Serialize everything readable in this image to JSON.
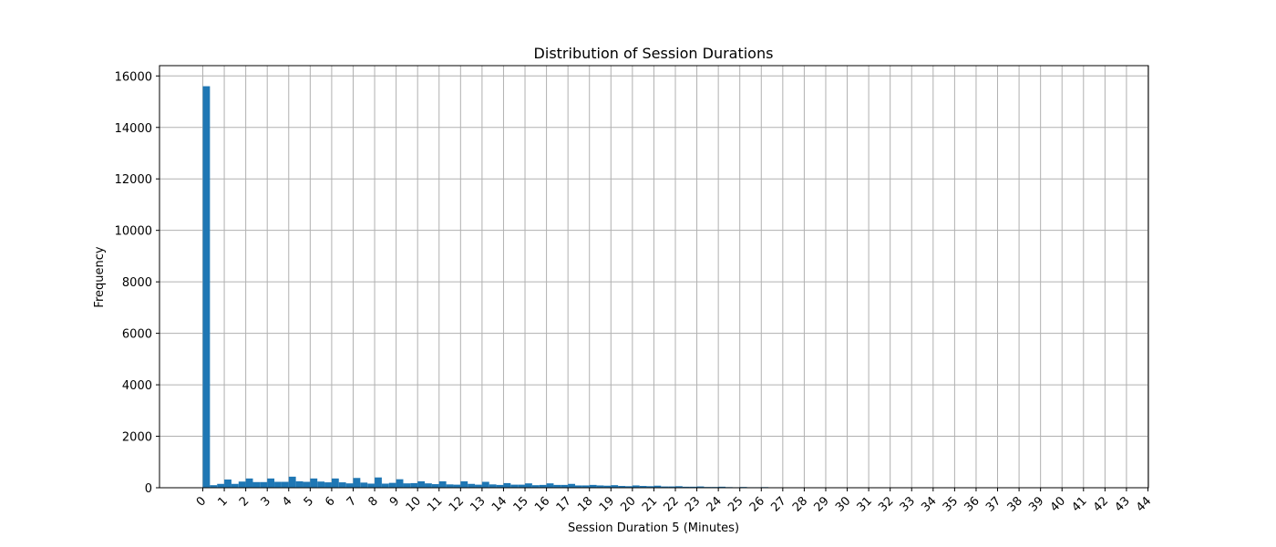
{
  "chart_data": {
    "type": "bar",
    "title": "Distribution of Session Durations",
    "xlabel": "Session Duration 5 (Minutes)",
    "ylabel": "Frequency",
    "bar_color": "#1f77b4",
    "grid": true,
    "xlim": [
      -2,
      44
    ],
    "ylim": [
      0,
      16400
    ],
    "xticks": [
      0,
      1,
      2,
      3,
      4,
      5,
      6,
      7,
      8,
      9,
      10,
      11,
      12,
      13,
      14,
      15,
      16,
      17,
      18,
      19,
      20,
      21,
      22,
      23,
      24,
      25,
      26,
      27,
      28,
      29,
      30,
      31,
      32,
      33,
      34,
      35,
      36,
      37,
      38,
      39,
      40,
      41,
      42,
      43,
      44
    ],
    "yticks": [
      0,
      2000,
      4000,
      6000,
      8000,
      10000,
      12000,
      14000,
      16000
    ],
    "bin_width": 0.333,
    "x": [
      0.0,
      0.333,
      0.667,
      1.0,
      1.333,
      1.667,
      2.0,
      2.333,
      2.667,
      3.0,
      3.333,
      3.667,
      4.0,
      4.333,
      4.667,
      5.0,
      5.333,
      5.667,
      6.0,
      6.333,
      6.667,
      7.0,
      7.333,
      7.667,
      8.0,
      8.333,
      8.667,
      9.0,
      9.333,
      9.667,
      10.0,
      10.333,
      10.667,
      11.0,
      11.333,
      11.667,
      12.0,
      12.333,
      12.667,
      13.0,
      13.333,
      13.667,
      14.0,
      14.333,
      14.667,
      15.0,
      15.333,
      15.667,
      16.0,
      16.333,
      16.667,
      17.0,
      17.333,
      17.667,
      18.0,
      18.333,
      18.667,
      19.0,
      19.333,
      19.667,
      20.0,
      20.333,
      20.667,
      21.0,
      21.333,
      21.667,
      22.0,
      22.333,
      22.667,
      23.0,
      23.333,
      23.667,
      24.0,
      24.333,
      24.667,
      25.0,
      25.333,
      25.667,
      26.0,
      26.333,
      26.667,
      27.0,
      27.333,
      27.667,
      28.0,
      28.333,
      28.667,
      29.0,
      29.333,
      29.667,
      30.0
    ],
    "values": [
      15600,
      100,
      150,
      320,
      150,
      240,
      360,
      220,
      220,
      360,
      230,
      230,
      430,
      250,
      230,
      360,
      240,
      210,
      360,
      210,
      170,
      380,
      200,
      160,
      400,
      160,
      190,
      330,
      170,
      180,
      250,
      170,
      140,
      250,
      130,
      120,
      250,
      150,
      120,
      230,
      130,
      110,
      180,
      120,
      120,
      170,
      100,
      110,
      170,
      110,
      110,
      150,
      90,
      90,
      110,
      90,
      80,
      100,
      70,
      60,
      90,
      70,
      60,
      80,
      50,
      50,
      60,
      40,
      40,
      50,
      30,
      30,
      40,
      25,
      20,
      30,
      20,
      20,
      25,
      15,
      15,
      15,
      10,
      10,
      15,
      10,
      10,
      10,
      8,
      6,
      5
    ]
  }
}
